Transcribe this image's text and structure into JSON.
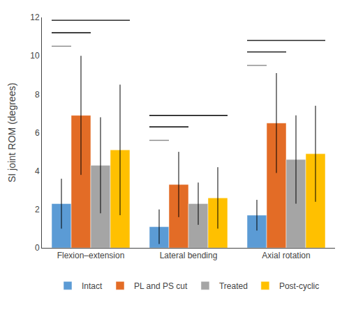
{
  "chart_data": {
    "type": "bar",
    "categories": [
      "Flexion–extension",
      "Lateral bending",
      "Axial rotation"
    ],
    "series": [
      {
        "name": "Intact",
        "color": "#5B9BD5",
        "values": [
          2.3,
          1.1,
          1.7
        ],
        "errors": [
          1.3,
          0.9,
          0.8
        ]
      },
      {
        "name": "PL and PS cut",
        "color": "#E36C26",
        "values": [
          6.9,
          3.3,
          6.5
        ],
        "errors": [
          3.1,
          1.7,
          2.6
        ]
      },
      {
        "name": "Treated",
        "color": "#A5A5A5",
        "values": [
          4.3,
          2.3,
          4.6
        ],
        "errors": [
          2.5,
          1.1,
          2.3
        ]
      },
      {
        "name": "Post-cyclic",
        "color": "#FFC000",
        "values": [
          5.1,
          2.6,
          4.9
        ],
        "errors": [
          3.4,
          1.6,
          2.5
        ]
      }
    ],
    "ylabel": "SI joint ROM (degrees)",
    "ylim": [
      0,
      12
    ],
    "yticks": [
      0,
      2,
      4,
      6,
      8,
      10,
      12
    ],
    "grid": false,
    "legend": "bottom",
    "sig_lines": [
      {
        "group": "Flexion–extension",
        "y": 10.5,
        "from": "Intact",
        "to": "Intact",
        "color": "#888888"
      },
      {
        "group": "Flexion–extension",
        "y": 11.2,
        "from": "Intact",
        "to": "PL and PS cut",
        "color": "#000000"
      },
      {
        "group": "Flexion–extension",
        "y": 11.85,
        "from": "Intact",
        "to": "Post-cyclic",
        "color": "#000000"
      },
      {
        "group": "Lateral bending",
        "y": 5.6,
        "from": "Intact",
        "to": "Intact",
        "color": "#888888"
      },
      {
        "group": "Lateral bending",
        "y": 6.3,
        "from": "Intact",
        "to": "PL and PS cut",
        "color": "#000000"
      },
      {
        "group": "Lateral bending",
        "y": 6.9,
        "from": "Intact",
        "to": "Post-cyclic",
        "color": "#000000"
      },
      {
        "group": "Axial rotation",
        "y": 9.5,
        "from": "Intact",
        "to": "Intact",
        "color": "#888888"
      },
      {
        "group": "Axial rotation",
        "y": 10.2,
        "from": "Intact",
        "to": "PL and PS cut",
        "color": "#000000"
      },
      {
        "group": "Axial rotation",
        "y": 10.8,
        "from": "Intact",
        "to": "Post-cyclic",
        "color": "#000000"
      }
    ]
  }
}
